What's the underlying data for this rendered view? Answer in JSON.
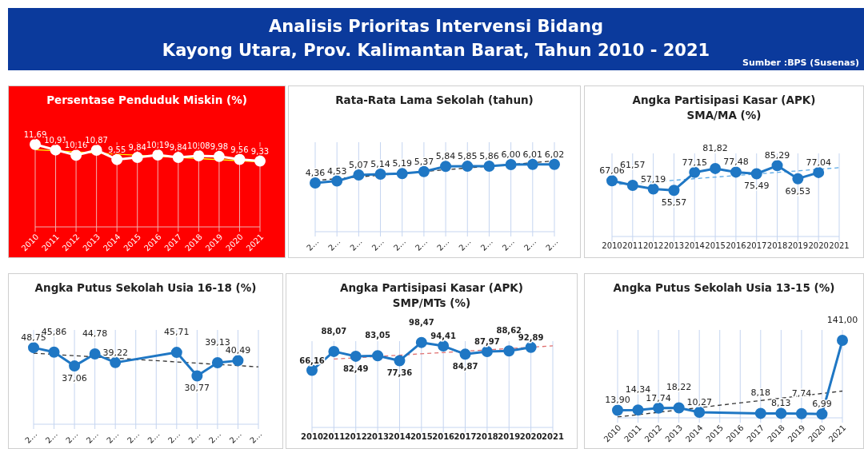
{
  "chart_data": [
    {
      "type": "other",
      "title": "Analisis Prioritas Intervensi Bidang\nKayong Utara, Prov. Kalimantan Barat, Tahun 2010 - 2021",
      "annotations": [
        "Sumber :BPS (Susenas)"
      ]
    },
    {
      "type": "line",
      "title": "Persentase Penduduk Miskin (%)",
      "categories": [
        "2010",
        "2011",
        "2012",
        "2013",
        "2014",
        "2015",
        "2016",
        "2017",
        "2018",
        "2019",
        "2020",
        "2021"
      ],
      "grid": "x",
      "series": [
        {
          "color": "#ffffff",
          "marker": "circle",
          "line_style": "solid",
          "values": [
            11.69,
            10.91,
            10.16,
            10.87,
            9.55,
            9.84,
            10.19,
            9.84,
            10.08,
            9.98,
            9.56,
            9.33
          ],
          "value_labels": [
            "11,69",
            "10,91",
            "10,16",
            "10,87",
            "9,55",
            "9,84",
            "10,19",
            "9,84",
            "10,08",
            "9,98",
            "9,56",
            "9,33"
          ]
        },
        {
          "color": "#ffff00",
          "marker": "none",
          "line_style": "solid",
          "values": [
            10.93,
            null,
            null,
            null,
            null,
            null,
            null,
            null,
            null,
            null,
            null,
            9.22
          ]
        }
      ]
    },
    {
      "type": "line",
      "title": "Rata-Rata Lama Sekolah (tahun)",
      "categories": [
        "2…",
        "2…",
        "2…",
        "2…",
        "2…",
        "2…",
        "2…",
        "2…",
        "2…",
        "2…",
        "2…",
        "2…"
      ],
      "grid": "x",
      "series": [
        {
          "color": "#1f77c4",
          "marker": "circle",
          "line_style": "solid",
          "values": [
            4.36,
            4.53,
            5.07,
            5.14,
            5.19,
            5.37,
            5.84,
            5.85,
            5.86,
            6.0,
            6.01,
            6.02
          ],
          "value_labels": [
            "4,36",
            "4,53",
            "5,07",
            "5,14",
            "5,19",
            "5,37",
            "5,84",
            "5,85",
            "5,86",
            "6,00",
            "6,01",
            "6,02"
          ]
        },
        {
          "color": "#333333",
          "marker": "none",
          "line_style": "dashed",
          "values": [
            4.58,
            null,
            null,
            null,
            null,
            null,
            null,
            null,
            null,
            null,
            null,
            6.33
          ]
        }
      ]
    },
    {
      "type": "line",
      "title": "Angka Partisipasi Kasar (APK)\nSMA/MA (%)",
      "categories": [
        "2010",
        "2011",
        "2012",
        "2013",
        "2014",
        "2015",
        "2016",
        "2017",
        "2018",
        "2019",
        "2020",
        "2021"
      ],
      "grid": "x",
      "series": [
        {
          "color": "#1f77c4",
          "marker": "circle",
          "line_style": "solid",
          "values": [
            67.06,
            61.57,
            57.19,
            55.57,
            77.15,
            81.82,
            77.48,
            75.49,
            85.29,
            69.53,
            77.04,
            null
          ],
          "value_labels": [
            "67,06",
            "61,57",
            "57,19",
            "55,57",
            "77,15",
            "81,82",
            "77,48",
            "75,49",
            "85,29",
            "69,53",
            "77,04",
            null
          ]
        },
        {
          "color": "#5aa9e6",
          "marker": "none",
          "line_style": "dashed",
          "values": [
            62.0,
            null,
            null,
            null,
            null,
            null,
            null,
            null,
            null,
            null,
            null,
            82.8
          ]
        }
      ]
    },
    {
      "type": "line",
      "title": "Angka Putus Sekolah Usia 16-18 (%)",
      "categories": [
        "2…",
        "2…",
        "2…",
        "2…",
        "2…",
        "2…",
        "2…",
        "2…",
        "2…",
        "2…",
        "2…",
        "2…"
      ],
      "grid": "x",
      "series": [
        {
          "color": "#1f77c4",
          "marker": "circle",
          "line_style": "solid",
          "values": [
            48.75,
            45.86,
            37.06,
            44.78,
            39.22,
            null,
            null,
            45.71,
            30.77,
            39.13,
            40.49,
            null
          ],
          "value_labels": [
            "48,75",
            "45,86",
            "37,06",
            "44,78",
            "39,22",
            null,
            null,
            "45,71",
            "30,77",
            "39,13",
            "40,49",
            null
          ]
        },
        {
          "color": "#333333",
          "marker": "none",
          "line_style": "dashed",
          "values": [
            45.2,
            null,
            null,
            null,
            null,
            null,
            null,
            null,
            null,
            null,
            null,
            36.5
          ]
        }
      ]
    },
    {
      "type": "line",
      "title": "Angka Partisipasi Kasar (APK)\nSMP/MTs (%)",
      "categories": [
        "2010",
        "2011",
        "2012",
        "2013",
        "2014",
        "2015",
        "2016",
        "2017",
        "2018",
        "2019",
        "2020",
        "2021"
      ],
      "grid": "x",
      "series": [
        {
          "color": "#1f77c4",
          "marker": "circle",
          "line_style": "solid",
          "values": [
            66.16,
            88.07,
            82.49,
            83.05,
            77.36,
            98.47,
            94.41,
            84.87,
            87.97,
            88.62,
            92.89,
            null
          ],
          "value_labels": [
            "66,16",
            "88,07",
            "82,49",
            "83,05",
            "77,36",
            "98,47",
            "94,41",
            "84,87",
            "87,97",
            "88,62",
            "92,89",
            null
          ]
        },
        {
          "color": "#e07070",
          "marker": "none",
          "line_style": "dashed",
          "values": [
            null,
            79.2,
            null,
            null,
            null,
            null,
            null,
            null,
            null,
            null,
            null,
            94.5
          ]
        }
      ]
    },
    {
      "type": "line",
      "title": "Angka Putus Sekolah Usia 13-15 (%)",
      "categories": [
        "2010",
        "2011",
        "2012",
        "2013",
        "2014",
        "2015",
        "2016",
        "2017",
        "2018",
        "2019",
        "2020",
        "2021"
      ],
      "grid": "x",
      "series": [
        {
          "color": "#1f77c4",
          "marker": "circle",
          "line_style": "solid",
          "values": [
            13.9,
            14.34,
            17.74,
            18.22,
            10.27,
            null,
            null,
            8.18,
            8.13,
            7.74,
            6.99,
            141.0
          ],
          "value_labels": [
            "13,90",
            "14,34",
            "17,74",
            "18,22",
            "10,27",
            null,
            null,
            "8,18",
            "8,13",
            "7,74",
            "6,99",
            "141,00"
          ]
        },
        {
          "color": "#333333",
          "marker": "none",
          "line_style": "dashed",
          "values": [
            1.5,
            null,
            null,
            null,
            null,
            null,
            null,
            null,
            null,
            null,
            null,
            48.7
          ]
        }
      ]
    }
  ]
}
